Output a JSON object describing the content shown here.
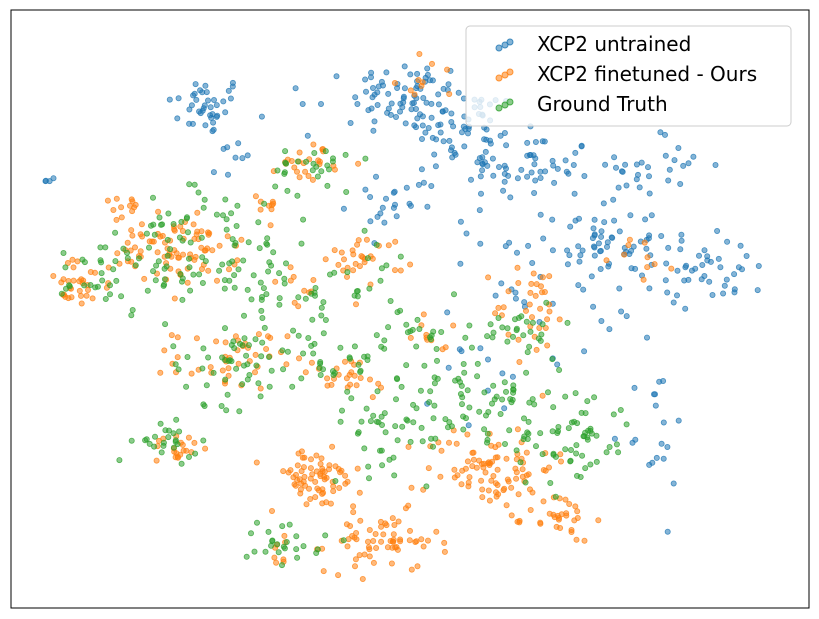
{
  "chart_data": {
    "type": "scatter",
    "title": "",
    "xlabel": "",
    "ylabel": "",
    "xlim": [
      0,
      100
    ],
    "ylim": [
      0,
      100
    ],
    "grid": false,
    "ticks": false,
    "legend_position": "top-right",
    "series": [
      {
        "name": "XCP2 untrained",
        "color": "#1f77b4",
        "clusters": [
          {
            "cx": 24.5,
            "cy": 84.0,
            "sx": 2.5,
            "sy": 2.5,
            "n": 40
          },
          {
            "cx": 49.8,
            "cy": 85.5,
            "sx": 3.5,
            "sy": 3.0,
            "n": 70
          },
          {
            "cx": 57.0,
            "cy": 80.0,
            "sx": 3.5,
            "sy": 3.5,
            "n": 55
          },
          {
            "cx": 65.0,
            "cy": 73.5,
            "sx": 4.0,
            "sy": 3.0,
            "n": 55
          },
          {
            "cx": 74.0,
            "cy": 61.0,
            "sx": 3.5,
            "sy": 4.0,
            "n": 55
          },
          {
            "cx": 82.0,
            "cy": 74.0,
            "sx": 3.0,
            "sy": 3.0,
            "n": 25
          },
          {
            "cx": 87.5,
            "cy": 57.0,
            "sx": 4.0,
            "sy": 3.0,
            "n": 45
          },
          {
            "cx": 66.0,
            "cy": 54.0,
            "sx": 6.0,
            "sy": 6.0,
            "n": 35
          },
          {
            "cx": 80.0,
            "cy": 30.0,
            "sx": 2.5,
            "sy": 6.0,
            "n": 20
          },
          {
            "cx": 48.0,
            "cy": 68.0,
            "sx": 3.0,
            "sy": 3.0,
            "n": 25
          },
          {
            "cx": 5.0,
            "cy": 71.5,
            "sx": 0.3,
            "sy": 0.3,
            "n": 4
          },
          {
            "cx": 28.0,
            "cy": 75.0,
            "sx": 2.0,
            "sy": 1.5,
            "n": 8
          },
          {
            "cx": 40.0,
            "cy": 84.0,
            "sx": 3.0,
            "sy": 2.0,
            "n": 8
          },
          {
            "cx": 61.5,
            "cy": 37.0,
            "sx": 4.0,
            "sy": 4.0,
            "n": 12
          }
        ]
      },
      {
        "name": "XCP2 finetuned - Ours",
        "color": "#ff7f0e",
        "clusters": [
          {
            "cx": 8.5,
            "cy": 54.0,
            "sx": 2.0,
            "sy": 2.0,
            "n": 30
          },
          {
            "cx": 20.5,
            "cy": 60.0,
            "sx": 4.0,
            "sy": 3.0,
            "n": 90
          },
          {
            "cx": 37.5,
            "cy": 74.5,
            "sx": 2.0,
            "sy": 1.5,
            "n": 25
          },
          {
            "cx": 44.5,
            "cy": 58.5,
            "sx": 2.5,
            "sy": 2.0,
            "n": 30
          },
          {
            "cx": 27.5,
            "cy": 41.5,
            "sx": 3.5,
            "sy": 2.5,
            "n": 45
          },
          {
            "cx": 38.0,
            "cy": 21.5,
            "sx": 3.0,
            "sy": 2.5,
            "n": 70
          },
          {
            "cx": 46.5,
            "cy": 11.0,
            "sx": 3.5,
            "sy": 2.5,
            "n": 65
          },
          {
            "cx": 60.0,
            "cy": 23.5,
            "sx": 4.0,
            "sy": 3.5,
            "n": 90
          },
          {
            "cx": 65.5,
            "cy": 50.0,
            "sx": 2.5,
            "sy": 4.0,
            "n": 35
          },
          {
            "cx": 21.0,
            "cy": 27.0,
            "sx": 1.5,
            "sy": 1.5,
            "n": 20
          },
          {
            "cx": 69.0,
            "cy": 15.0,
            "sx": 2.0,
            "sy": 2.0,
            "n": 30
          },
          {
            "cx": 14.5,
            "cy": 67.0,
            "sx": 1.0,
            "sy": 1.0,
            "n": 10
          },
          {
            "cx": 31.5,
            "cy": 67.5,
            "sx": 1.0,
            "sy": 1.0,
            "n": 8
          },
          {
            "cx": 53.5,
            "cy": 46.0,
            "sx": 1.5,
            "sy": 1.5,
            "n": 10
          },
          {
            "cx": 41.5,
            "cy": 38.5,
            "sx": 3.5,
            "sy": 2.0,
            "n": 25
          },
          {
            "cx": 36.0,
            "cy": 53.0,
            "sx": 2.0,
            "sy": 2.0,
            "n": 10
          },
          {
            "cx": 53.0,
            "cy": 88.5,
            "sx": 3.0,
            "sy": 2.0,
            "n": 10
          },
          {
            "cx": 33.5,
            "cy": 10.0,
            "sx": 1.5,
            "sy": 1.5,
            "n": 8
          },
          {
            "cx": 79.5,
            "cy": 58.5,
            "sx": 2.0,
            "sy": 2.0,
            "n": 10
          }
        ]
      },
      {
        "name": "Ground Truth",
        "color": "#2ca02c",
        "clusters": [
          {
            "cx": 9.5,
            "cy": 55.5,
            "sx": 2.5,
            "sy": 2.5,
            "n": 15
          },
          {
            "cx": 17.5,
            "cy": 57.5,
            "sx": 4.0,
            "sy": 4.0,
            "n": 40
          },
          {
            "cx": 29.5,
            "cy": 57.0,
            "sx": 5.0,
            "sy": 4.0,
            "n": 55
          },
          {
            "cx": 27.5,
            "cy": 41.0,
            "sx": 4.0,
            "sy": 3.5,
            "n": 45
          },
          {
            "cx": 38.0,
            "cy": 74.5,
            "sx": 2.0,
            "sy": 1.5,
            "n": 15
          },
          {
            "cx": 40.0,
            "cy": 42.0,
            "sx": 4.0,
            "sy": 3.0,
            "n": 35
          },
          {
            "cx": 48.5,
            "cy": 31.0,
            "sx": 4.5,
            "sy": 4.0,
            "n": 55
          },
          {
            "cx": 59.5,
            "cy": 36.0,
            "sx": 5.0,
            "sy": 4.0,
            "n": 60
          },
          {
            "cx": 70.0,
            "cy": 28.0,
            "sx": 4.0,
            "sy": 4.0,
            "n": 60
          },
          {
            "cx": 63.5,
            "cy": 47.0,
            "sx": 2.5,
            "sy": 2.5,
            "n": 25
          },
          {
            "cx": 19.5,
            "cy": 27.5,
            "sx": 2.0,
            "sy": 1.5,
            "n": 25
          },
          {
            "cx": 34.5,
            "cy": 11.5,
            "sx": 2.5,
            "sy": 2.0,
            "n": 25
          },
          {
            "cx": 42.0,
            "cy": 53.5,
            "sx": 4.0,
            "sy": 4.0,
            "n": 25
          },
          {
            "cx": 51.0,
            "cy": 45.0,
            "sx": 3.0,
            "sy": 3.0,
            "n": 20
          },
          {
            "cx": 24.5,
            "cy": 66.0,
            "sx": 4.5,
            "sy": 3.5,
            "n": 25
          },
          {
            "cx": 36.5,
            "cy": 72.0,
            "sx": 3.0,
            "sy": 2.0,
            "n": 12
          }
        ]
      }
    ]
  }
}
